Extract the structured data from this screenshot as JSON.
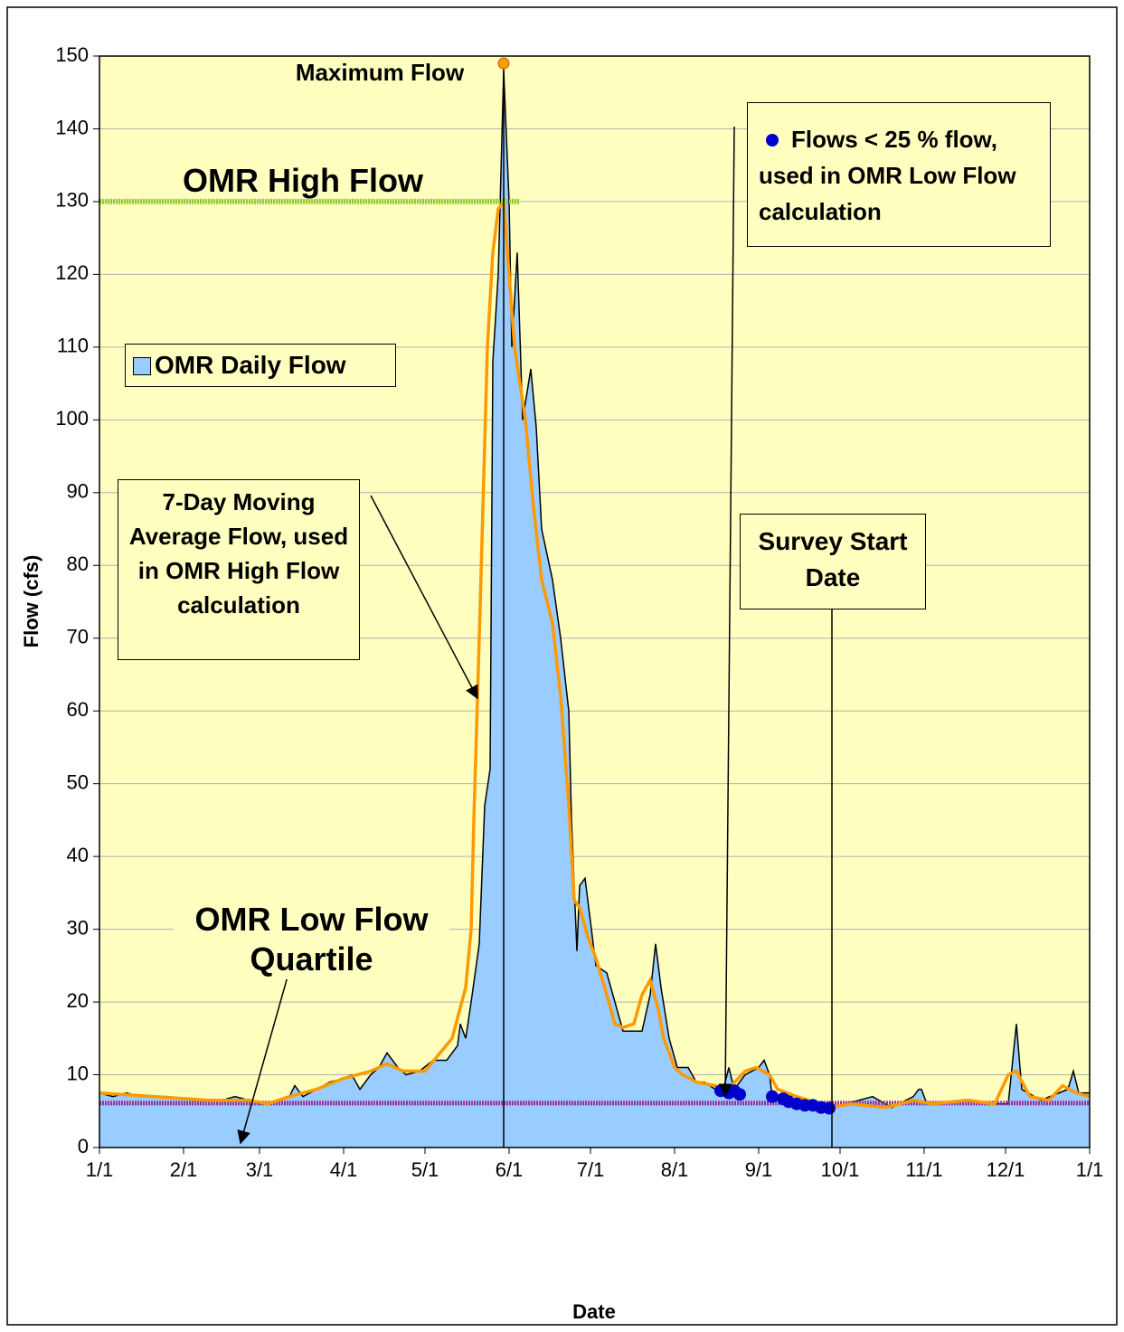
{
  "chart_data": {
    "type": "area",
    "xlabel": "Date",
    "ylabel": "Flow (cfs)",
    "xlim": [
      0,
      365
    ],
    "ylim": [
      0,
      150
    ],
    "xticks": [
      {
        "value": 0,
        "label": "1/1"
      },
      {
        "value": 31,
        "label": "2/1"
      },
      {
        "value": 59,
        "label": "3/1"
      },
      {
        "value": 90,
        "label": "4/1"
      },
      {
        "value": 120,
        "label": "5/1"
      },
      {
        "value": 151,
        "label": "6/1"
      },
      {
        "value": 181,
        "label": "7/1"
      },
      {
        "value": 212,
        "label": "8/1"
      },
      {
        "value": 243,
        "label": "9/1"
      },
      {
        "value": 273,
        "label": "10/1"
      },
      {
        "value": 304,
        "label": "11/1"
      },
      {
        "value": 334,
        "label": "12/1"
      },
      {
        "value": 365,
        "label": "1/1"
      }
    ],
    "yticks": [
      0,
      10,
      20,
      30,
      40,
      50,
      60,
      70,
      80,
      90,
      100,
      110,
      120,
      130,
      140,
      150
    ],
    "grid": true,
    "series": [
      {
        "name": "OMR Daily Flow",
        "type": "area",
        "color": "#99ccff",
        "x": [
          0,
          5,
          10,
          15,
          20,
          25,
          31,
          36,
          40,
          45,
          50,
          55,
          59,
          62,
          66,
          70,
          72,
          75,
          80,
          85,
          90,
          93,
          96,
          100,
          103,
          106,
          110,
          113,
          118,
          123,
          128,
          132,
          133,
          135,
          137,
          140,
          142,
          144,
          145,
          147,
          149,
          151,
          152,
          154,
          156,
          159,
          161,
          163,
          167,
          170,
          173,
          174,
          176,
          177,
          179,
          181,
          183,
          187,
          190,
          193,
          200,
          203,
          205,
          207,
          210,
          213,
          217,
          220,
          223,
          227,
          230,
          232,
          234,
          238,
          243,
          245,
          247,
          248,
          253,
          260,
          267,
          270,
          275,
          285,
          292,
          300,
          302,
          303,
          305,
          317,
          330,
          335,
          338,
          340,
          347,
          357,
          359,
          361,
          365
        ],
        "values": [
          7.5,
          7,
          7.5,
          7,
          7,
          7,
          6.8,
          6.5,
          6.5,
          6.5,
          7,
          6.5,
          6,
          6,
          6.5,
          7,
          8.5,
          7,
          8,
          9,
          9.5,
          10,
          8,
          10,
          11,
          13,
          11,
          10,
          10.5,
          12,
          12,
          14,
          17,
          15,
          20,
          28,
          47,
          52,
          108,
          120,
          148,
          130,
          110,
          123,
          100,
          107,
          99,
          85,
          78,
          70,
          60,
          45,
          27,
          36,
          37,
          31,
          25,
          24,
          20,
          16,
          16,
          21,
          28,
          22,
          15,
          11,
          11,
          9,
          9,
          8,
          8,
          11,
          8,
          10,
          11,
          12,
          10,
          7,
          6.5,
          6,
          5.5,
          5.5,
          6,
          7,
          5.5,
          7,
          8,
          8,
          6,
          6.5,
          6,
          6,
          17,
          8,
          6.5,
          8,
          10.5,
          7.5,
          7.5
        ]
      },
      {
        "name": "7-Day Moving Average Flow, used in OMR High Flow calculation",
        "type": "line",
        "color": "#ff9900",
        "x": [
          0,
          20,
          40,
          55,
          62,
          70,
          80,
          90,
          100,
          106,
          112,
          120,
          130,
          135,
          137,
          138,
          140,
          143,
          145,
          147,
          149,
          151,
          153,
          157,
          160,
          163,
          167,
          170,
          173,
          175,
          177,
          180,
          183,
          187,
          190,
          193,
          197,
          200,
          203,
          206,
          208,
          212,
          215,
          220,
          227,
          230,
          233,
          238,
          242,
          247,
          250,
          257,
          263,
          270,
          277,
          290,
          300,
          307,
          320,
          330,
          335,
          338,
          343,
          350,
          355,
          360,
          365
        ],
        "values": [
          7.5,
          7,
          6.5,
          6.5,
          6,
          7,
          8,
          9.5,
          10.5,
          11.5,
          10.5,
          10.5,
          15,
          22,
          30,
          45,
          70,
          110,
          123,
          129,
          130,
          120,
          110,
          100,
          88,
          78,
          72,
          62,
          47,
          34,
          33,
          29,
          26,
          21,
          17,
          16.5,
          17,
          21,
          23,
          19,
          15,
          11,
          10,
          9,
          8.5,
          8,
          8.5,
          10.5,
          11,
          10,
          8,
          7,
          6.3,
          5.5,
          6,
          5.5,
          6.5,
          6,
          6.5,
          6,
          10,
          10.5,
          7,
          6.5,
          8.5,
          7.5,
          7
        ]
      },
      {
        "name": "Flows < 25 % flow, used in OMR Low Flow calculation",
        "type": "scatter",
        "color": "#0000cc",
        "x": [
          229,
          232,
          234,
          236,
          248,
          252,
          254,
          257,
          260,
          263,
          266,
          269
        ],
        "values": [
          7.8,
          7.5,
          7.8,
          7.3,
          7,
          6.7,
          6.3,
          6,
          5.8,
          5.8,
          5.5,
          5.4
        ]
      }
    ],
    "reference_lines": [
      {
        "label": "OMR High Flow",
        "value": 130,
        "color": "#99cc33"
      },
      {
        "label": "OMR Low Flow Quartile",
        "value": 6.1,
        "color": "#993399"
      }
    ],
    "markers": [
      {
        "label": "Maximum Flow",
        "x": 149,
        "y": 149,
        "color": "#ff9900"
      },
      {
        "label": "Survey Start Date",
        "x": 270
      }
    ]
  }
}
